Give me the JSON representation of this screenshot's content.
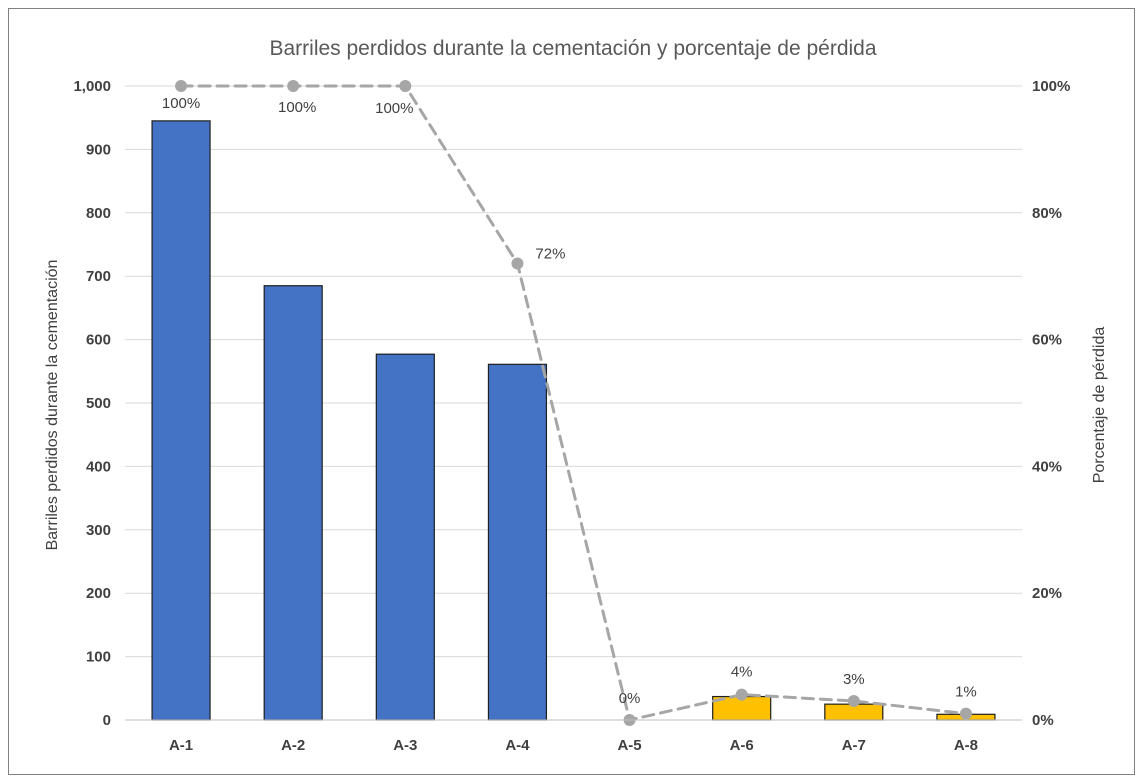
{
  "chart_data": {
    "type": "bar+line",
    "title": "Barriles perdidos durante la cementación y porcentaje de pérdida",
    "categories": [
      "A-1",
      "A-2",
      "A-3",
      "A-4",
      "A-5",
      "A-6",
      "A-7",
      "A-8"
    ],
    "bar_series": {
      "name": "Barriles perdidos durante la cementación",
      "values": [
        945,
        685,
        577,
        561,
        0,
        37,
        25,
        9
      ],
      "bar_colors": [
        "#4472C4",
        "#4472C4",
        "#4472C4",
        "#4472C4",
        "#4472C4",
        "#FFC000",
        "#FFC000",
        "#FFC000"
      ]
    },
    "line_series": {
      "name": "Porcentaje de pérdida",
      "values": [
        100,
        100,
        100,
        72,
        0,
        4,
        3,
        1
      ],
      "labels": [
        "100%",
        "100%",
        "100%",
        "72%",
        "0%",
        "4%",
        "3%",
        "1%"
      ],
      "color": "#A6A6A6"
    },
    "ylabel": "Barriles perdidos durante la cementación",
    "y2label": "Porcentaje de pérdida",
    "ylim": [
      0,
      1000
    ],
    "y2lim": [
      0,
      100
    ],
    "yticks": [
      "0",
      "100",
      "200",
      "300",
      "400",
      "500",
      "600",
      "700",
      "800",
      "900",
      "1,000"
    ],
    "y2ticks": [
      "0%",
      "20%",
      "40%",
      "60%",
      "80%",
      "100%"
    ],
    "grid": true,
    "legend": "none"
  }
}
